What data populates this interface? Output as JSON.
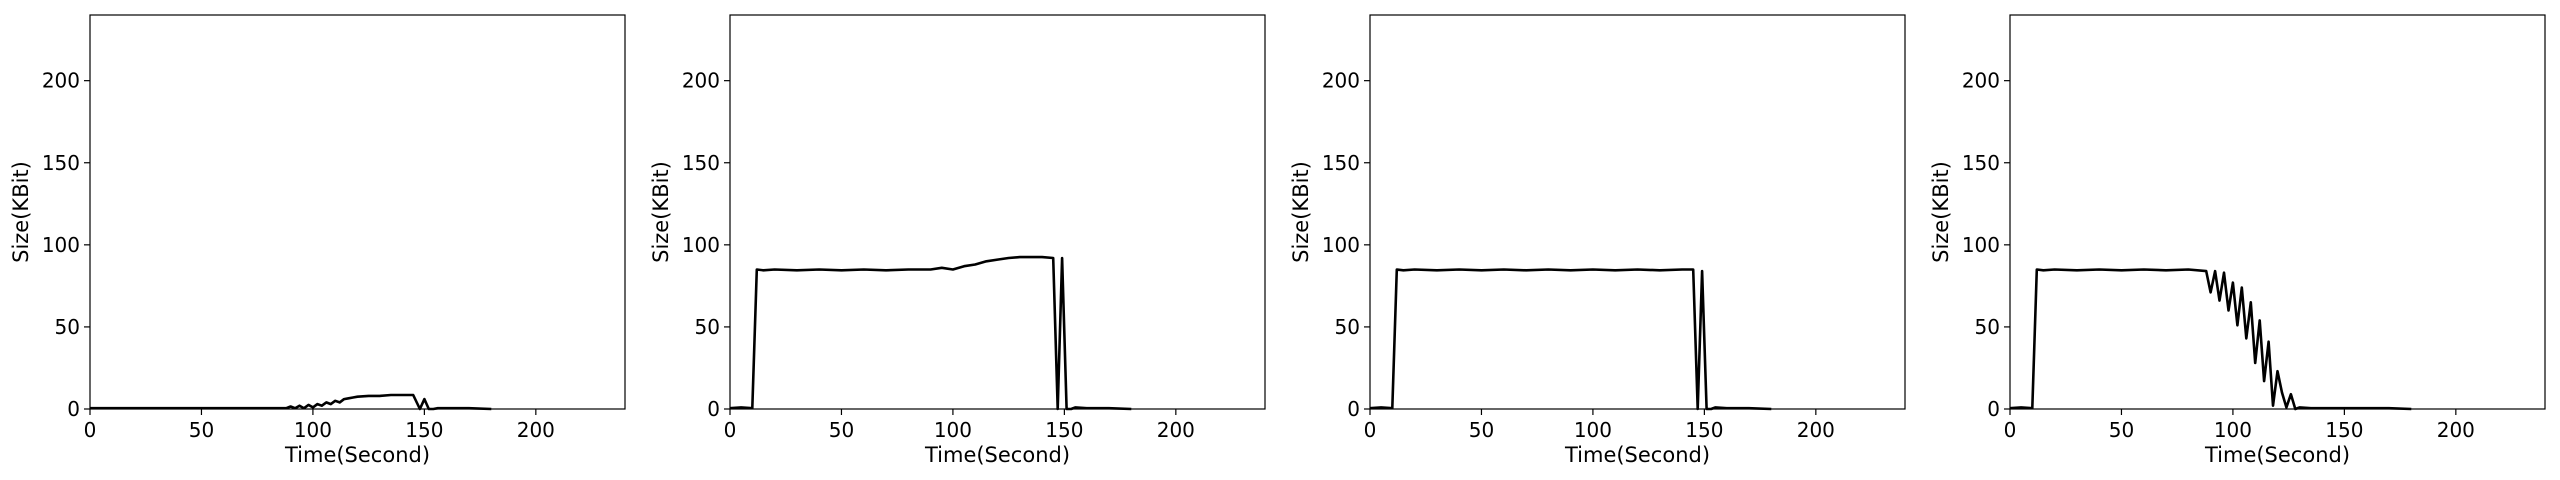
{
  "chart_data": [
    {
      "type": "line",
      "title": "",
      "xlabel": "Time(Second)",
      "ylabel": "Size(KBit)",
      "xlim": [
        0,
        240
      ],
      "ylim": [
        0,
        240
      ],
      "xticks": [
        0,
        50,
        100,
        150,
        200
      ],
      "yticks": [
        0,
        50,
        100,
        150,
        200
      ],
      "grid": false,
      "series": [
        {
          "x": [
            0,
            10,
            20,
            30,
            40,
            50,
            60,
            70,
            80,
            88,
            90,
            92,
            94,
            96,
            98,
            100,
            102,
            104,
            106,
            108,
            110,
            112,
            114,
            116,
            118,
            120,
            125,
            130,
            135,
            140,
            145,
            148,
            150,
            152,
            154,
            156,
            160,
            170,
            180
          ],
          "y": [
            0.5,
            0.5,
            0.5,
            0.5,
            0.5,
            0.5,
            0.5,
            0.5,
            0.5,
            0.5,
            1.5,
            0.5,
            2,
            0.5,
            2.5,
            1,
            3,
            2,
            4,
            3,
            5,
            4,
            6,
            6.5,
            7,
            7.5,
            8,
            8,
            8.5,
            8.5,
            8.5,
            0,
            6,
            0,
            0,
            0.5,
            0.5,
            0.5,
            0
          ]
        }
      ]
    },
    {
      "type": "line",
      "title": "",
      "xlabel": "Time(Second)",
      "ylabel": "Size(KBit)",
      "xlim": [
        0,
        240
      ],
      "ylim": [
        0,
        240
      ],
      "xticks": [
        0,
        50,
        100,
        150,
        200
      ],
      "yticks": [
        0,
        50,
        100,
        150,
        200
      ],
      "grid": false,
      "series": [
        {
          "x": [
            0,
            5,
            10,
            12,
            15,
            20,
            30,
            40,
            50,
            60,
            70,
            80,
            90,
            95,
            100,
            105,
            110,
            115,
            120,
            125,
            130,
            135,
            140,
            145,
            147,
            149,
            151,
            153,
            155,
            160,
            170,
            180
          ],
          "y": [
            0.5,
            1,
            0.5,
            85,
            84.5,
            85,
            84.5,
            85,
            84.5,
            85,
            84.5,
            85,
            85,
            86,
            85,
            87,
            88,
            90,
            91,
            92,
            92.5,
            92.5,
            92.5,
            92,
            0,
            92,
            0,
            0,
            1,
            0.5,
            0.5,
            0
          ]
        }
      ]
    },
    {
      "type": "line",
      "title": "",
      "xlabel": "Time(Second)",
      "ylabel": "Size(KBit)",
      "xlim": [
        0,
        240
      ],
      "ylim": [
        0,
        240
      ],
      "xticks": [
        0,
        50,
        100,
        150,
        200
      ],
      "yticks": [
        0,
        50,
        100,
        150,
        200
      ],
      "grid": false,
      "series": [
        {
          "x": [
            0,
            5,
            10,
            12,
            15,
            20,
            30,
            40,
            50,
            60,
            70,
            80,
            90,
            100,
            110,
            120,
            130,
            140,
            145,
            147,
            149,
            151,
            153,
            155,
            160,
            170,
            180
          ],
          "y": [
            0.5,
            1,
            0.5,
            85,
            84.5,
            85,
            84.5,
            85,
            84.5,
            85,
            84.5,
            85,
            84.5,
            85,
            84.5,
            85,
            84.5,
            85,
            85,
            0,
            84,
            0,
            0,
            1,
            0.5,
            0.5,
            0
          ]
        }
      ]
    },
    {
      "type": "line",
      "title": "",
      "xlabel": "Time(Second)",
      "ylabel": "Size(KBit)",
      "xlim": [
        0,
        240
      ],
      "ylim": [
        0,
        240
      ],
      "xticks": [
        0,
        50,
        100,
        150,
        200
      ],
      "yticks": [
        0,
        50,
        100,
        150,
        200
      ],
      "grid": false,
      "series": [
        {
          "x": [
            0,
            5,
            10,
            12,
            15,
            20,
            30,
            40,
            50,
            60,
            70,
            80,
            88,
            90,
            92,
            94,
            96,
            98,
            100,
            102,
            104,
            106,
            108,
            110,
            112,
            114,
            116,
            118,
            120,
            122,
            124,
            126,
            128,
            130,
            135,
            140,
            150,
            160,
            170,
            180
          ],
          "y": [
            0.5,
            1,
            0.5,
            85,
            84.5,
            85,
            84.5,
            85,
            84.5,
            85,
            84.5,
            85,
            84,
            71,
            84,
            66,
            83,
            60,
            77,
            51,
            74,
            43,
            65,
            28,
            54,
            17,
            41,
            2,
            23,
            10,
            1,
            9,
            0,
            1,
            0.5,
            0.5,
            0.5,
            0.5,
            0.5,
            0
          ]
        }
      ]
    }
  ]
}
